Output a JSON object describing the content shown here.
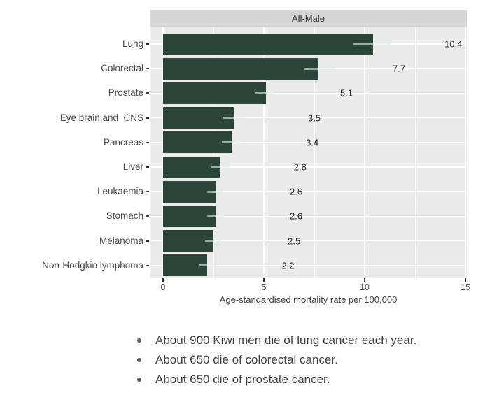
{
  "chart_data": {
    "type": "bar",
    "orientation": "horizontal",
    "facet_title": "All-Male",
    "xlabel": "Age-standardised mortality rate per 100,000",
    "xlim": [
      0,
      15.6
    ],
    "x_ticks": [
      0,
      5,
      10,
      15
    ],
    "x_minor_gridlines": [
      2.5,
      7.5,
      12.5
    ],
    "grid": "white major and minor gridlines on gray panel",
    "legend": "none",
    "colors": {
      "bar": "#2b4639",
      "panel_bg": "#ebebeb",
      "strip_bg": "#d6d6d6",
      "gridline": "#ffffff",
      "error_bar": "rgba(218,242,233,0.62)",
      "tick": "#333333",
      "label_text": "#4d4d4d",
      "value_text": "#2b2b2b"
    },
    "categories": [
      "Lung",
      "Colorectal",
      "Prostate",
      "Eye brain and  CNS",
      "Pancreas",
      "Liver",
      "Leukaemia",
      "Stomach",
      "Melanoma",
      "Non-Hodgkin lymphoma"
    ],
    "values": [
      10.4,
      7.7,
      5.1,
      3.5,
      3.4,
      2.8,
      2.6,
      2.6,
      2.5,
      2.2
    ],
    "bars": [
      {
        "label": "Lung",
        "value": 10.4,
        "value_label": "10.4",
        "ci_low": 9.4,
        "ci_high": 11.3
      },
      {
        "label": "Colorectal",
        "value": 7.7,
        "value_label": "7.7",
        "ci_low": 7.0,
        "ci_high": 8.5
      },
      {
        "label": "Prostate",
        "value": 5.1,
        "value_label": "5.1",
        "ci_low": 4.6,
        "ci_high": 5.6
      },
      {
        "label": "Eye brain and  CNS",
        "value": 3.5,
        "value_label": "3.5",
        "ci_low": 3.0,
        "ci_high": 4.1
      },
      {
        "label": "Pancreas",
        "value": 3.4,
        "value_label": "3.4",
        "ci_low": 2.9,
        "ci_high": 3.9
      },
      {
        "label": "Liver",
        "value": 2.8,
        "value_label": "2.8",
        "ci_low": 2.4,
        "ci_high": 3.3
      },
      {
        "label": "Leukaemia",
        "value": 2.6,
        "value_label": "2.6",
        "ci_low": 2.2,
        "ci_high": 3.0
      },
      {
        "label": "Stomach",
        "value": 2.6,
        "value_label": "2.6",
        "ci_low": 2.2,
        "ci_high": 3.0
      },
      {
        "label": "Melanoma",
        "value": 2.5,
        "value_label": "2.5",
        "ci_low": 2.1,
        "ci_high": 2.9
      },
      {
        "label": "Non-Hodgkin lymphoma",
        "value": 2.2,
        "value_label": "2.2",
        "ci_low": 1.8,
        "ci_high": 2.6
      }
    ]
  },
  "notes": {
    "items": [
      "About 900 Kiwi men die of lung cancer each year.",
      "About 650 die of colorectal cancer.",
      "About 650 die of prostate cancer."
    ]
  }
}
